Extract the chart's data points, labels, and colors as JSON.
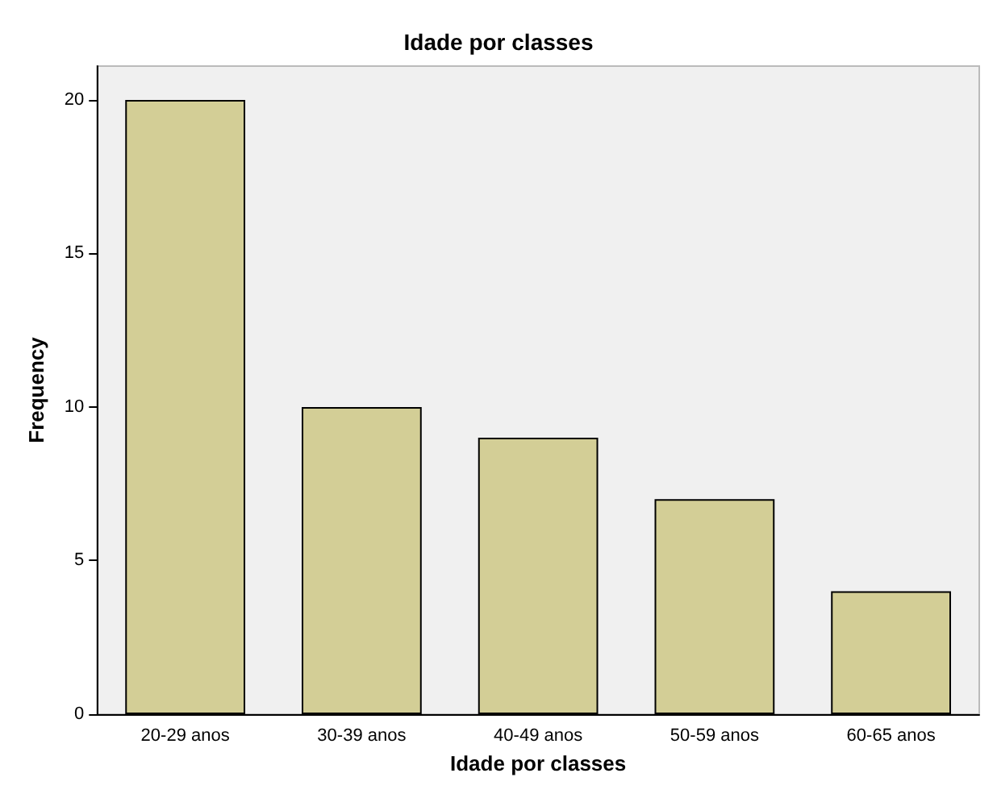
{
  "chart_data": {
    "type": "bar",
    "title": "Idade por classes",
    "xlabel": "Idade por classes",
    "ylabel": "Frequency",
    "categories": [
      "20-29 anos",
      "30-39 anos",
      "40-49 anos",
      "50-59 anos",
      "60-65 anos"
    ],
    "values": [
      20,
      10,
      9,
      7,
      4
    ],
    "color": "#d3ce96",
    "ylim": [
      0,
      21.1
    ],
    "yticks": [
      0,
      5,
      10,
      15,
      20
    ]
  }
}
